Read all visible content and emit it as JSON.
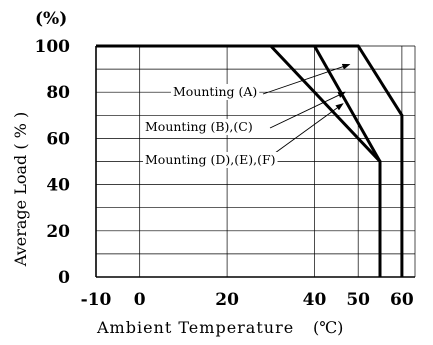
{
  "chart_data": {
    "type": "line",
    "unit_label": "(%)",
    "xlabel": "Ambient Temperature",
    "xunit": "(℃)",
    "ylabel": "Average Load ( % )",
    "xlim": [
      -10,
      63
    ],
    "ylim": [
      0,
      100
    ],
    "x_ticks": [
      {
        "value": -10,
        "label": "-10"
      },
      {
        "value": 0,
        "label": "0"
      },
      {
        "value": 20,
        "label": "20"
      },
      {
        "value": 40,
        "label": "40"
      },
      {
        "value": 50,
        "label": "50"
      },
      {
        "value": 60,
        "label": "60"
      }
    ],
    "y_ticks": [
      {
        "value": 0,
        "label": "0"
      },
      {
        "value": 20,
        "label": "20"
      },
      {
        "value": 40,
        "label": "40"
      },
      {
        "value": 60,
        "label": "60"
      },
      {
        "value": 80,
        "label": "80"
      },
      {
        "value": 100,
        "label": "100"
      }
    ],
    "grid": true,
    "series": [
      {
        "name": "Mounting (A)",
        "x": [
          -10,
          50,
          60,
          60
        ],
        "y": [
          100,
          100,
          70,
          0
        ]
      },
      {
        "name": "Mounting (B),(C)",
        "x": [
          -10,
          40,
          55,
          55
        ],
        "y": [
          100,
          100,
          50,
          0
        ]
      },
      {
        "name": "Mounting (D),(E),(F)",
        "x": [
          -10,
          30,
          55,
          55
        ],
        "y": [
          100,
          100,
          50,
          0
        ]
      }
    ],
    "annotations": [
      {
        "text": "Mounting (A)",
        "series": 0
      },
      {
        "text": "Mounting (B),(C)",
        "series": 1
      },
      {
        "text": "Mounting (D),(E),(F)",
        "series": 2
      }
    ]
  }
}
